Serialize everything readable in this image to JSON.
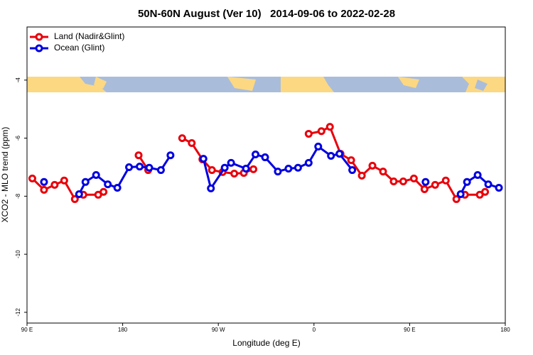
{
  "chart_data": {
    "type": "line",
    "title": "50N-60N August (Ver 10)   2014-09-06 to 2022-02-28",
    "xlabel": "Longitude (deg E)",
    "ylabel": "XCO2 - MLO trend (ppm)",
    "xlim": [
      90,
      540
    ],
    "ylim": [
      -12.37,
      -2.17
    ],
    "xticks": [
      {
        "value": 90,
        "label": "90 E"
      },
      180,
      {
        "value": 270,
        "label": "90 W"
      },
      {
        "value": 360,
        "label": "0"
      },
      {
        "value": 450,
        "label": "90 E"
      },
      {
        "value": 540,
        "label": "180"
      }
    ],
    "yticks": [
      -4,
      -6,
      -8,
      -10,
      -12
    ],
    "legend": "upper left",
    "series": [
      {
        "name": "Land (Nadir&Glint)",
        "color": "#e8000b",
        "x": [
          95,
          106,
          116,
          125,
          135,
          143,
          157,
          162,
          null,
          195,
          204,
          null,
          236,
          245,
          255,
          264,
          274,
          285,
          294,
          303,
          null,
          355,
          367,
          375,
          385,
          395,
          405,
          415,
          425,
          435,
          444,
          454,
          464,
          474,
          484,
          494,
          502,
          516,
          521
        ],
        "values": [
          -7.39,
          -7.78,
          -7.61,
          -7.46,
          -8.1,
          -7.95,
          -7.95,
          -7.85,
          null,
          -6.59,
          -7.1,
          null,
          -6.0,
          -6.17,
          -6.73,
          -7.1,
          -7.17,
          -7.22,
          -7.2,
          -7.07,
          null,
          -5.85,
          -5.76,
          -5.61,
          -6.54,
          -6.76,
          -7.29,
          -6.95,
          -7.15,
          -7.49,
          -7.49,
          -7.39,
          -7.76,
          -7.61,
          -7.46,
          -8.1,
          -7.95,
          -7.95,
          -7.85
        ]
      },
      {
        "name": "Ocean (Glint)",
        "color": "#0000e0",
        "x": [
          106,
          null,
          139,
          145,
          155,
          166,
          175,
          186,
          196,
          205,
          216,
          225,
          null,
          256,
          263,
          276,
          282,
          296,
          305,
          314,
          326,
          336,
          345,
          355,
          364,
          376,
          384,
          396,
          null,
          465,
          null,
          498,
          504,
          514,
          524,
          534
        ],
        "values": [
          -7.51,
          null,
          -7.93,
          -7.51,
          -7.27,
          -7.59,
          -7.71,
          -7.0,
          -6.98,
          -7.02,
          -7.1,
          -6.59,
          null,
          -6.71,
          -7.73,
          -7.02,
          -6.85,
          -7.05,
          -6.56,
          -6.66,
          -7.15,
          -7.05,
          -7.02,
          -6.85,
          -6.29,
          -6.61,
          -6.54,
          -7.1,
          null,
          -7.51,
          null,
          -7.93,
          -7.51,
          -7.27,
          -7.59,
          -7.71
        ]
      }
    ]
  }
}
